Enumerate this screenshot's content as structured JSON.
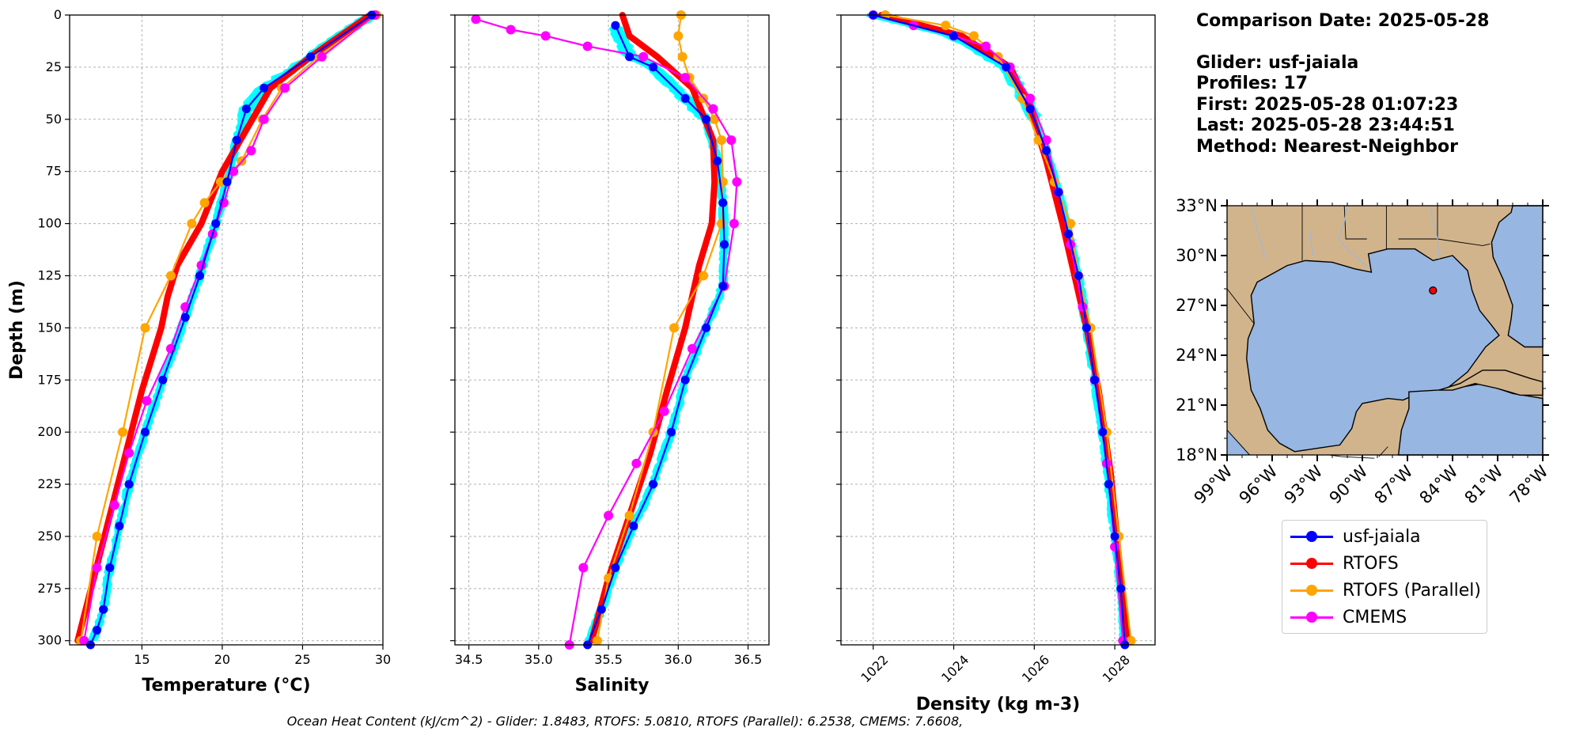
{
  "info": {
    "date_line": "Comparison Date: 2025-05-28",
    "glider_line": "Glider: usf-jaiala",
    "profiles_line": "Profiles: 17",
    "first_line": "First: 2025-05-28 01:07:23",
    "last_line": "Last: 2025-05-28 23:44:51",
    "method_line": "Method: Nearest-Neighbor"
  },
  "footer": "Ocean Heat Content (kJ/cm^2) - Glider: 1.8483,  RTOFS: 5.0810,  RTOFS (Parallel): 6.2538,  CMEMS: 7.6608,",
  "legend": [
    {
      "label": "usf-jaiala",
      "color": "#0000ff"
    },
    {
      "label": "RTOFS",
      "color": "#ff0000"
    },
    {
      "label": "RTOFS (Parallel)",
      "color": "#ffa500"
    },
    {
      "label": "CMEMS",
      "color": "#ff00ff"
    }
  ],
  "colors": {
    "glider_profiles": "#00ffff",
    "glider": "#0000ff",
    "rtofs": "#ff0000",
    "rtofs_parallel": "#ffa500",
    "cmems": "#ff00ff",
    "land": "#d2b48c",
    "ocean": "#97b6e1"
  },
  "chart_data": [
    {
      "type": "line",
      "xlabel": "Temperature (°C)",
      "ylabel": "Depth (m)",
      "xlim": [
        10.5,
        30
      ],
      "ylim": [
        302,
        0
      ],
      "xticks": [
        15,
        20,
        25,
        30
      ],
      "yticks": [
        0,
        25,
        50,
        75,
        100,
        125,
        150,
        175,
        200,
        225,
        250,
        275,
        300
      ],
      "grid": true,
      "series": [
        {
          "name": "usf-jaiala",
          "x": [
            29.3,
            25.5,
            22.6,
            21.5,
            20.9,
            20.3,
            19.6,
            18.6,
            17.7,
            16.3,
            15.2,
            14.2,
            13.6,
            13.0,
            12.6,
            12.2,
            11.8
          ],
          "y": [
            0,
            20,
            35,
            45,
            60,
            80,
            100,
            125,
            145,
            175,
            200,
            225,
            245,
            265,
            285,
            295,
            302
          ]
        },
        {
          "name": "RTOFS",
          "x": [
            29.2,
            25.5,
            23.0,
            21.5,
            20.0,
            18.7,
            17.2,
            16.6,
            16.2,
            15.0,
            14.0,
            13.0,
            12.0,
            11.0
          ],
          "y": [
            0,
            20,
            35,
            55,
            75,
            100,
            120,
            135,
            150,
            180,
            210,
            240,
            270,
            300
          ]
        },
        {
          "name": "RTOFS (Parallel)",
          "x": [
            29.6,
            26.0,
            23.7,
            22.5,
            21.2,
            19.9,
            18.9,
            18.1,
            16.8,
            15.2,
            13.8,
            12.2,
            11.2
          ],
          "y": [
            0,
            20,
            35,
            50,
            70,
            80,
            90,
            100,
            125,
            150,
            200,
            250,
            300
          ]
        },
        {
          "name": "CMEMS",
          "x": [
            29.5,
            26.2,
            23.9,
            22.6,
            21.8,
            20.7,
            20.1,
            19.4,
            18.7,
            17.7,
            16.8,
            15.3,
            14.2,
            13.3,
            12.2,
            11.4
          ],
          "y": [
            0,
            20,
            35,
            50,
            65,
            75,
            90,
            105,
            120,
            140,
            160,
            185,
            210,
            235,
            265,
            300
          ]
        }
      ]
    },
    {
      "type": "line",
      "xlabel": "Salinity",
      "xlim": [
        34.4,
        36.65
      ],
      "ylim": [
        302,
        0
      ],
      "xticks": [
        34.5,
        35.0,
        35.5,
        36.0,
        36.5
      ],
      "grid": true,
      "series": [
        {
          "name": "usf-jaiala",
          "x": [
            35.55,
            35.65,
            35.82,
            36.05,
            36.2,
            36.28,
            36.32,
            36.33,
            36.32,
            36.2,
            36.05,
            35.95,
            35.82,
            35.68,
            35.55,
            35.45,
            35.35
          ],
          "y": [
            5,
            20,
            25,
            40,
            50,
            70,
            90,
            110,
            130,
            150,
            175,
            200,
            225,
            245,
            265,
            285,
            302
          ]
        },
        {
          "name": "RTOFS",
          "x": [
            35.6,
            35.65,
            35.85,
            36.1,
            36.25,
            36.26,
            36.24,
            36.15,
            36.05,
            35.92,
            35.8,
            35.65,
            35.5,
            35.38
          ],
          "y": [
            0,
            10,
            20,
            35,
            60,
            80,
            100,
            120,
            150,
            180,
            210,
            240,
            270,
            300
          ]
        },
        {
          "name": "RTOFS (Parallel)",
          "x": [
            36.02,
            36.0,
            36.03,
            36.08,
            36.18,
            36.26,
            36.31,
            36.32,
            36.31,
            36.18,
            35.97,
            35.82,
            35.65,
            35.5,
            35.42
          ],
          "y": [
            0,
            10,
            20,
            30,
            40,
            50,
            60,
            80,
            100,
            125,
            150,
            200,
            240,
            270,
            300
          ]
        },
        {
          "name": "CMEMS",
          "x": [
            34.55,
            34.8,
            35.05,
            35.35,
            35.75,
            36.05,
            36.25,
            36.38,
            36.42,
            36.4,
            36.33,
            36.1,
            35.9,
            35.7,
            35.5,
            35.32,
            35.22
          ],
          "y": [
            2,
            7,
            10,
            15,
            20,
            30,
            45,
            60,
            80,
            100,
            130,
            160,
            190,
            215,
            240,
            265,
            302
          ]
        }
      ]
    },
    {
      "type": "line",
      "xlabel": "Density (kg m-3)",
      "xlim": [
        1021.2,
        1029
      ],
      "ylim": [
        302,
        0
      ],
      "xticks": [
        1022,
        1024,
        1026,
        1028
      ],
      "grid": true,
      "series": [
        {
          "name": "usf-jaiala",
          "x": [
            1022.0,
            1024.0,
            1025.3,
            1025.9,
            1026.3,
            1026.6,
            1026.85,
            1027.1,
            1027.3,
            1027.5,
            1027.7,
            1027.85,
            1028.0,
            1028.15,
            1028.25
          ],
          "y": [
            0,
            10,
            25,
            45,
            65,
            85,
            105,
            125,
            150,
            175,
            200,
            225,
            250,
            275,
            302
          ]
        },
        {
          "name": "RTOFS",
          "x": [
            1022.2,
            1024.2,
            1025.4,
            1025.9,
            1026.3,
            1026.7,
            1027.0,
            1027.3,
            1027.6,
            1027.9,
            1028.1,
            1028.3
          ],
          "y": [
            0,
            10,
            25,
            45,
            70,
            100,
            125,
            150,
            180,
            220,
            260,
            300
          ]
        },
        {
          "name": "RTOFS (Parallel)",
          "x": [
            1022.3,
            1023.8,
            1024.5,
            1025.1,
            1025.7,
            1026.1,
            1026.5,
            1026.9,
            1027.1,
            1027.4,
            1027.8,
            1028.1,
            1028.4
          ],
          "y": [
            0,
            5,
            10,
            20,
            40,
            60,
            80,
            100,
            125,
            150,
            200,
            250,
            300
          ]
        },
        {
          "name": "CMEMS",
          "x": [
            1022.0,
            1023.0,
            1024.0,
            1024.8,
            1025.4,
            1025.9,
            1026.3,
            1026.6,
            1026.9,
            1027.2,
            1027.5,
            1027.8,
            1028.0,
            1028.2
          ],
          "y": [
            0,
            5,
            10,
            15,
            25,
            40,
            60,
            85,
            110,
            140,
            175,
            215,
            255,
            300
          ]
        }
      ]
    },
    {
      "type": "map",
      "lon_range": [
        -99,
        -78
      ],
      "lat_range": [
        18,
        33
      ],
      "lon_ticks": [
        "99°W",
        "96°W",
        "93°W",
        "90°W",
        "87°W",
        "84°W",
        "81°W",
        "78°W"
      ],
      "lat_ticks": [
        "33°N",
        "30°N",
        "27°N",
        "24°N",
        "21°N",
        "18°N"
      ],
      "marker": {
        "lon": -85.3,
        "lat": 27.9
      }
    }
  ]
}
